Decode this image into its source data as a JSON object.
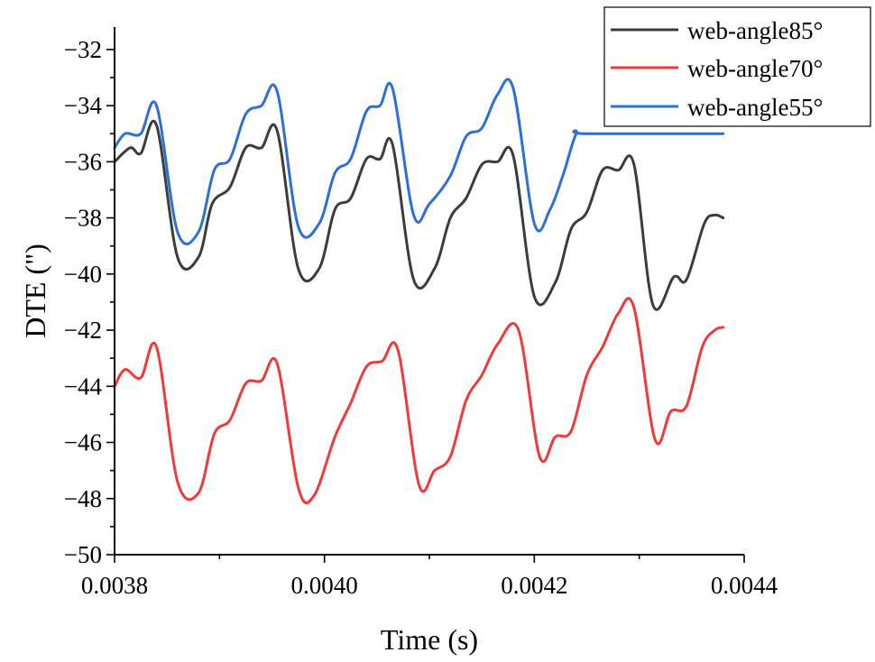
{
  "chart_data": {
    "type": "line",
    "title": "",
    "xlabel": "Time (s)",
    "ylabel": "DTE (\")",
    "xlim": [
      0.0038,
      0.0044
    ],
    "ylim": [
      -50,
      -31.2
    ],
    "xticks": [
      0.0038,
      0.004,
      0.0042,
      0.0044
    ],
    "xtick_labels": [
      "0.0038",
      "0.0040",
      "0.0042",
      "0.0044"
    ],
    "yticks": [
      -50,
      -48,
      -46,
      -44,
      -42,
      -40,
      -38,
      -36,
      -34,
      -32
    ],
    "ytick_labels": [
      "−50",
      "−48",
      "−46",
      "−44",
      "−42",
      "−40",
      "−38",
      "−36",
      "−34",
      "−32"
    ],
    "legend_position": "top-right",
    "grid": false,
    "series": [
      {
        "name": "web-angle85°",
        "color": "#3c3c3c",
        "points": [
          [
            0.0038,
            -36.0
          ],
          [
            0.003815,
            -35.5
          ],
          [
            0.003825,
            -35.7
          ],
          [
            0.00384,
            -34.7
          ],
          [
            0.00386,
            -39.4
          ],
          [
            0.00388,
            -39.4
          ],
          [
            0.003893,
            -37.5
          ],
          [
            0.00391,
            -36.9
          ],
          [
            0.003925,
            -35.5
          ],
          [
            0.00394,
            -35.5
          ],
          [
            0.003955,
            -34.9
          ],
          [
            0.003975,
            -39.8
          ],
          [
            0.003995,
            -39.8
          ],
          [
            0.00401,
            -37.7
          ],
          [
            0.004025,
            -37.3
          ],
          [
            0.00404,
            -35.9
          ],
          [
            0.004053,
            -35.9
          ],
          [
            0.004065,
            -35.4
          ],
          [
            0.004085,
            -40.2
          ],
          [
            0.004105,
            -39.8
          ],
          [
            0.00412,
            -38.0
          ],
          [
            0.004135,
            -37.3
          ],
          [
            0.00415,
            -36.1
          ],
          [
            0.004165,
            -36.0
          ],
          [
            0.00418,
            -35.8
          ],
          [
            0.0042,
            -40.8
          ],
          [
            0.00422,
            -40.3
          ],
          [
            0.004235,
            -38.4
          ],
          [
            0.00425,
            -37.8
          ],
          [
            0.004265,
            -36.3
          ],
          [
            0.00428,
            -36.3
          ],
          [
            0.004295,
            -36.1
          ],
          [
            0.004313,
            -41.1
          ],
          [
            0.004333,
            -40.1
          ],
          [
            0.004345,
            -40.2
          ],
          [
            0.004362,
            -38.2
          ],
          [
            0.004372,
            -37.9
          ],
          [
            0.00438,
            -38.0
          ]
        ]
      },
      {
        "name": "web-angle70°",
        "color": "#f03a3a",
        "points": [
          [
            0.0038,
            -44.0
          ],
          [
            0.00381,
            -43.4
          ],
          [
            0.003825,
            -43.7
          ],
          [
            0.00384,
            -42.6
          ],
          [
            0.00386,
            -47.4
          ],
          [
            0.00388,
            -47.8
          ],
          [
            0.003895,
            -45.7
          ],
          [
            0.00391,
            -45.2
          ],
          [
            0.003925,
            -43.9
          ],
          [
            0.00394,
            -43.8
          ],
          [
            0.003955,
            -43.2
          ],
          [
            0.003975,
            -47.6
          ],
          [
            0.00399,
            -47.9
          ],
          [
            0.00401,
            -45.8
          ],
          [
            0.004025,
            -44.6
          ],
          [
            0.00404,
            -43.3
          ],
          [
            0.004055,
            -43.1
          ],
          [
            0.00407,
            -42.7
          ],
          [
            0.00409,
            -47.5
          ],
          [
            0.004105,
            -47.0
          ],
          [
            0.00412,
            -46.5
          ],
          [
            0.004135,
            -44.5
          ],
          [
            0.00415,
            -43.6
          ],
          [
            0.004165,
            -42.5
          ],
          [
            0.004185,
            -42.0
          ],
          [
            0.004205,
            -46.5
          ],
          [
            0.00422,
            -45.8
          ],
          [
            0.004235,
            -45.6
          ],
          [
            0.00425,
            -43.6
          ],
          [
            0.004265,
            -42.6
          ],
          [
            0.00428,
            -41.4
          ],
          [
            0.004295,
            -41.2
          ],
          [
            0.004315,
            -45.9
          ],
          [
            0.00433,
            -44.9
          ],
          [
            0.004345,
            -44.7
          ],
          [
            0.00436,
            -42.6
          ],
          [
            0.004372,
            -42.0
          ],
          [
            0.00438,
            -41.9
          ]
        ]
      },
      {
        "name": "web-angle55°",
        "color": "#2c6fd6",
        "points": [
          [
            0.0038,
            -35.5
          ],
          [
            0.00381,
            -35.0
          ],
          [
            0.003825,
            -35.0
          ],
          [
            0.00384,
            -34.0
          ],
          [
            0.00386,
            -38.5
          ],
          [
            0.00388,
            -38.5
          ],
          [
            0.003895,
            -36.3
          ],
          [
            0.00391,
            -35.9
          ],
          [
            0.003925,
            -34.3
          ],
          [
            0.00394,
            -34.0
          ],
          [
            0.003955,
            -33.5
          ],
          [
            0.003975,
            -38.3
          ],
          [
            0.003995,
            -38.2
          ],
          [
            0.00401,
            -36.4
          ],
          [
            0.004025,
            -35.9
          ],
          [
            0.00404,
            -34.2
          ],
          [
            0.004053,
            -34.0
          ],
          [
            0.004065,
            -33.4
          ],
          [
            0.004085,
            -37.9
          ],
          [
            0.0041,
            -37.5
          ],
          [
            0.00412,
            -36.5
          ],
          [
            0.004135,
            -35.1
          ],
          [
            0.00415,
            -34.8
          ],
          [
            0.004165,
            -33.6
          ],
          [
            0.00418,
            -33.4
          ],
          [
            0.0042,
            -38.2
          ],
          [
            0.004215,
            -37.7
          ],
          [
            0.004228,
            -36.4
          ],
          [
            0.00424,
            -35.0
          ],
          [
            0.00425,
            -35.0
          ],
          [
            0.00438,
            -35.0
          ]
        ]
      }
    ]
  }
}
